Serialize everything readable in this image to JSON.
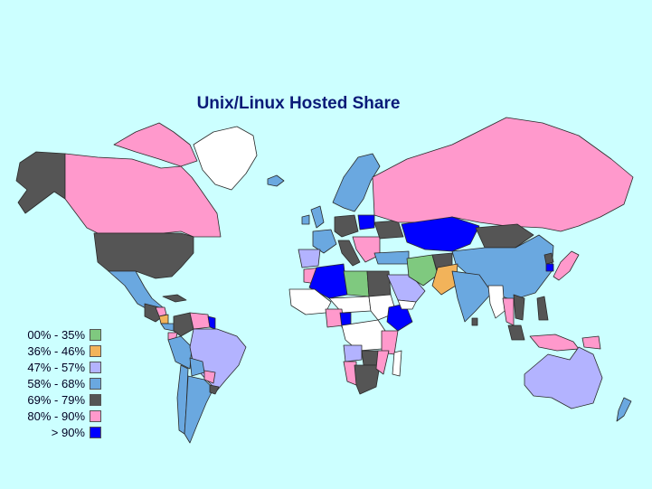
{
  "title": "Unix/Linux Hosted Share",
  "colors": {
    "background": "#ccffff",
    "no_data": "#ffffff",
    "border": "#2a2a2a"
  },
  "legend": {
    "items": [
      {
        "label": "00% - 35%",
        "color": "#7fc97f"
      },
      {
        "label": "36% - 46%",
        "color": "#f2b35a"
      },
      {
        "label": "47% - 57%",
        "color": "#b3b3ff"
      },
      {
        "label": "58% - 68%",
        "color": "#6aa8e0"
      },
      {
        "label": "69% - 79%",
        "color": "#555555"
      },
      {
        "label": "80% - 90%",
        "color": "#ff99cc"
      },
      {
        "label": "> 90%",
        "color": "#0000ff"
      }
    ]
  },
  "regions": [
    {
      "name": "alaska",
      "class": 4
    },
    {
      "name": "canada",
      "class": 5
    },
    {
      "name": "canadian-arctic",
      "class": 5
    },
    {
      "name": "greenland",
      "class": null
    },
    {
      "name": "iceland",
      "class": 3
    },
    {
      "name": "usa",
      "class": 4
    },
    {
      "name": "mexico",
      "class": 3
    },
    {
      "name": "cuba",
      "class": 4
    },
    {
      "name": "central-america",
      "class": 4
    },
    {
      "name": "honduras",
      "class": 5
    },
    {
      "name": "nicaragua",
      "class": 1
    },
    {
      "name": "panama",
      "class": 3
    },
    {
      "name": "colombia",
      "class": 4
    },
    {
      "name": "venezuela",
      "class": 5
    },
    {
      "name": "guyana",
      "class": 6
    },
    {
      "name": "ecuador",
      "class": 5
    },
    {
      "name": "peru",
      "class": 3
    },
    {
      "name": "brazil",
      "class": 2
    },
    {
      "name": "bolivia",
      "class": 3
    },
    {
      "name": "paraguay",
      "class": 5
    },
    {
      "name": "chile",
      "class": 3
    },
    {
      "name": "argentina",
      "class": 3
    },
    {
      "name": "uruguay",
      "class": 4
    },
    {
      "name": "scandinavia",
      "class": 3
    },
    {
      "name": "uk",
      "class": 3
    },
    {
      "name": "ireland",
      "class": 3
    },
    {
      "name": "france",
      "class": 3
    },
    {
      "name": "iberia",
      "class": 2
    },
    {
      "name": "germany",
      "class": 4
    },
    {
      "name": "poland",
      "class": 6
    },
    {
      "name": "italy",
      "class": 4
    },
    {
      "name": "balkans",
      "class": 5
    },
    {
      "name": "turkey",
      "class": 3
    },
    {
      "name": "ukraine",
      "class": 4
    },
    {
      "name": "russia",
      "class": 5
    },
    {
      "name": "kazakhstan",
      "class": 6
    },
    {
      "name": "mongolia",
      "class": 4
    },
    {
      "name": "china",
      "class": 3
    },
    {
      "name": "north-korea",
      "class": 4
    },
    {
      "name": "south-korea",
      "class": 6
    },
    {
      "name": "japan",
      "class": 5
    },
    {
      "name": "morocco",
      "class": 5
    },
    {
      "name": "algeria",
      "class": 6
    },
    {
      "name": "libya",
      "class": 0
    },
    {
      "name": "egypt",
      "class": 4
    },
    {
      "name": "west-africa",
      "class": null
    },
    {
      "name": "sahel",
      "class": null
    },
    {
      "name": "sudan",
      "class": null
    },
    {
      "name": "ethiopia",
      "class": 6
    },
    {
      "name": "nigeria",
      "class": 5
    },
    {
      "name": "cameroon",
      "class": 6
    },
    {
      "name": "central-africa",
      "class": null
    },
    {
      "name": "east-africa",
      "class": 5
    },
    {
      "name": "angola",
      "class": 2
    },
    {
      "name": "zambia",
      "class": 4
    },
    {
      "name": "namibia",
      "class": 5
    },
    {
      "name": "south-africa",
      "class": 4
    },
    {
      "name": "mozambique",
      "class": 5
    },
    {
      "name": "madagascar",
      "class": null
    },
    {
      "name": "saudi-arabia",
      "class": 2
    },
    {
      "name": "yemen",
      "class": null
    },
    {
      "name": "iran",
      "class": 0
    },
    {
      "name": "afghanistan",
      "class": 4
    },
    {
      "name": "pakistan",
      "class": 1
    },
    {
      "name": "india",
      "class": 3
    },
    {
      "name": "sri-lanka",
      "class": 4
    },
    {
      "name": "burma",
      "class": null
    },
    {
      "name": "thailand",
      "class": 5
    },
    {
      "name": "vietnam",
      "class": 4
    },
    {
      "name": "malaysia",
      "class": 4
    },
    {
      "name": "indonesia",
      "class": 5
    },
    {
      "name": "philippines",
      "class": 4
    },
    {
      "name": "png",
      "class": 5
    },
    {
      "name": "australia",
      "class": 2
    },
    {
      "name": "new-zealand",
      "class": 3
    }
  ]
}
